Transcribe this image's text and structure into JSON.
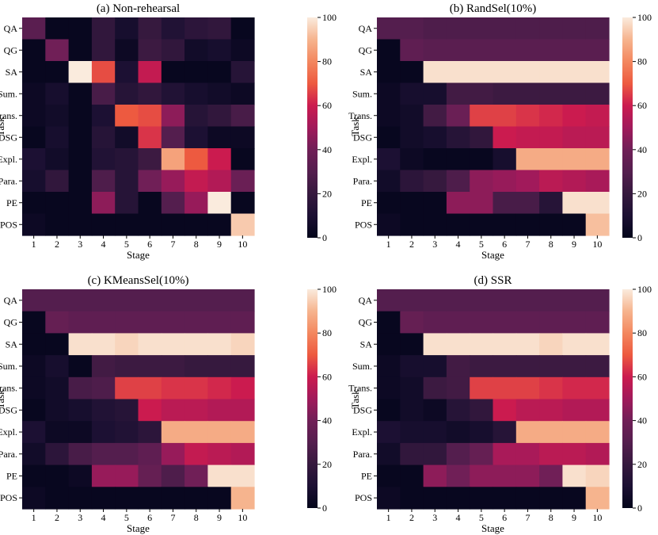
{
  "chart_data": [
    {
      "type": "heatmap",
      "title": "(a) Non-rehearsal",
      "xlabel": "Stage",
      "ylabel": "Task",
      "x": [
        "1",
        "2",
        "3",
        "4",
        "5",
        "6",
        "7",
        "8",
        "9",
        "10"
      ],
      "y": [
        "QA",
        "QG",
        "SA",
        "Sum.",
        "Trans.",
        "DSG",
        "Expl.",
        "Para.",
        "PE",
        "POS"
      ],
      "colorbar": {
        "min": 0,
        "max": 100,
        "ticks": [
          "0",
          "20",
          "40",
          "60",
          "80",
          "100"
        ]
      },
      "values": [
        [
          32,
          2,
          2,
          18,
          8,
          20,
          12,
          16,
          18,
          2
        ],
        [
          2,
          40,
          2,
          18,
          4,
          22,
          18,
          6,
          8,
          4
        ],
        [
          2,
          2,
          100,
          68,
          10,
          58,
          2,
          2,
          2,
          14
        ],
        [
          4,
          8,
          2,
          26,
          14,
          18,
          12,
          8,
          6,
          4
        ],
        [
          4,
          6,
          2,
          10,
          70,
          68,
          46,
          14,
          18,
          26
        ],
        [
          2,
          8,
          2,
          14,
          6,
          64,
          30,
          10,
          4,
          4
        ],
        [
          10,
          6,
          2,
          12,
          14,
          22,
          86,
          70,
          60,
          2
        ],
        [
          8,
          18,
          2,
          28,
          14,
          40,
          48,
          58,
          54,
          38
        ],
        [
          2,
          2,
          2,
          46,
          14,
          2,
          30,
          48,
          100,
          2
        ],
        [
          4,
          2,
          2,
          2,
          2,
          2,
          2,
          2,
          2,
          94
        ]
      ]
    },
    {
      "type": "heatmap",
      "title": "(b) RandSel(10%)",
      "xlabel": "Stage",
      "ylabel": "Task",
      "x": [
        "1",
        "2",
        "3",
        "4",
        "5",
        "6",
        "7",
        "8",
        "9",
        "10"
      ],
      "y": [
        "QA",
        "QG",
        "SA",
        "Sum.",
        "Trans.",
        "DSG",
        "Expl.",
        "Para.",
        "PE",
        "POS"
      ],
      "colorbar": {
        "min": 0,
        "max": 100,
        "ticks": [
          "0",
          "20",
          "40",
          "60",
          "80",
          "100"
        ]
      },
      "values": [
        [
          30,
          30,
          28,
          28,
          28,
          28,
          28,
          28,
          28,
          28
        ],
        [
          2,
          34,
          32,
          32,
          32,
          32,
          32,
          32,
          32,
          32
        ],
        [
          2,
          2,
          98,
          98,
          98,
          98,
          98,
          98,
          98,
          98
        ],
        [
          4,
          8,
          8,
          24,
          24,
          22,
          22,
          22,
          22,
          22
        ],
        [
          4,
          6,
          24,
          38,
          66,
          66,
          64,
          62,
          60,
          58
        ],
        [
          2,
          6,
          8,
          14,
          18,
          60,
          58,
          58,
          56,
          56
        ],
        [
          10,
          4,
          2,
          2,
          2,
          8,
          88,
          88,
          88,
          88
        ],
        [
          6,
          16,
          20,
          28,
          46,
          48,
          50,
          56,
          54,
          52
        ],
        [
          2,
          2,
          2,
          46,
          46,
          26,
          26,
          14,
          98,
          98
        ],
        [
          4,
          2,
          2,
          2,
          2,
          2,
          2,
          2,
          2,
          92
        ]
      ]
    },
    {
      "type": "heatmap",
      "title": "(c) KMeansSel(10%)",
      "xlabel": "Stage",
      "ylabel": "Task",
      "x": [
        "1",
        "2",
        "3",
        "4",
        "5",
        "6",
        "7",
        "8",
        "9",
        "10"
      ],
      "y": [
        "QA",
        "QG",
        "SA",
        "Sum.",
        "Trans.",
        "DSG",
        "Expl.",
        "Para.",
        "PE",
        "POS"
      ],
      "colorbar": {
        "min": 0,
        "max": 100,
        "ticks": [
          "0",
          "20",
          "40",
          "60",
          "80",
          "100"
        ]
      },
      "values": [
        [
          30,
          30,
          30,
          30,
          30,
          30,
          30,
          30,
          30,
          30
        ],
        [
          2,
          36,
          34,
          34,
          34,
          34,
          34,
          34,
          34,
          34
        ],
        [
          2,
          2,
          98,
          98,
          96,
          98,
          98,
          98,
          98,
          96
        ],
        [
          4,
          8,
          2,
          24,
          22,
          22,
          22,
          20,
          20,
          20
        ],
        [
          4,
          6,
          26,
          28,
          66,
          66,
          64,
          64,
          62,
          60
        ],
        [
          2,
          6,
          8,
          12,
          14,
          60,
          56,
          56,
          54,
          54
        ],
        [
          10,
          4,
          4,
          10,
          12,
          16,
          88,
          88,
          88,
          88
        ],
        [
          6,
          16,
          26,
          30,
          30,
          34,
          48,
          58,
          56,
          54
        ],
        [
          2,
          2,
          4,
          48,
          48,
          36,
          28,
          40,
          98,
          98
        ],
        [
          4,
          2,
          2,
          2,
          2,
          2,
          2,
          2,
          2,
          90
        ]
      ]
    },
    {
      "type": "heatmap",
      "title": "(d) SSR",
      "xlabel": "Stage",
      "ylabel": "Task",
      "x": [
        "1",
        "2",
        "3",
        "4",
        "5",
        "6",
        "7",
        "8",
        "9",
        "10"
      ],
      "y": [
        "QA",
        "QG",
        "SA",
        "Sum.",
        "Trans.",
        "DSG",
        "Expl.",
        "Para.",
        "PE",
        "POS"
      ],
      "colorbar": {
        "min": 0,
        "max": 100,
        "ticks": [
          "0",
          "20",
          "40",
          "60",
          "80",
          "100"
        ]
      },
      "values": [
        [
          30,
          30,
          30,
          30,
          30,
          30,
          30,
          30,
          30,
          30
        ],
        [
          2,
          36,
          34,
          34,
          34,
          34,
          34,
          34,
          34,
          34
        ],
        [
          2,
          2,
          98,
          98,
          98,
          98,
          98,
          96,
          98,
          98
        ],
        [
          4,
          8,
          8,
          24,
          22,
          22,
          22,
          22,
          22,
          22
        ],
        [
          4,
          6,
          22,
          24,
          66,
          66,
          66,
          64,
          62,
          62
        ],
        [
          2,
          6,
          4,
          14,
          18,
          60,
          56,
          56,
          54,
          54
        ],
        [
          10,
          8,
          8,
          6,
          8,
          14,
          88,
          88,
          88,
          88
        ],
        [
          6,
          18,
          18,
          30,
          36,
          52,
          52,
          56,
          56,
          54
        ],
        [
          2,
          2,
          46,
          40,
          46,
          46,
          46,
          40,
          98,
          96
        ],
        [
          4,
          2,
          2,
          2,
          2,
          2,
          2,
          2,
          2,
          90
        ]
      ]
    }
  ]
}
